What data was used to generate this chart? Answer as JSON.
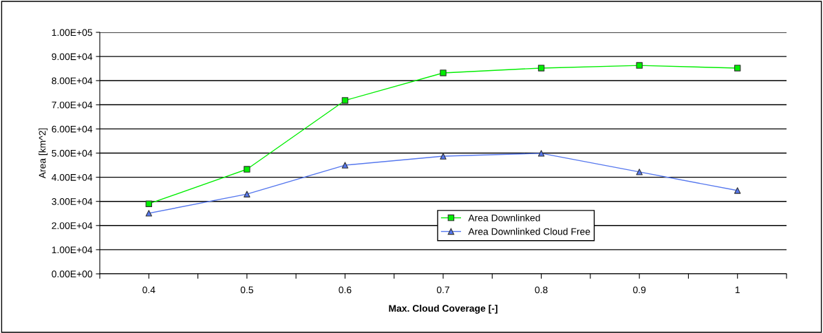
{
  "chart_data": {
    "type": "line",
    "xlabel": "Max. Cloud Coverage [-]",
    "ylabel": "Area [km^2]",
    "x": [
      0.4,
      0.5,
      0.6,
      0.7,
      0.8,
      0.9,
      1.0
    ],
    "series": [
      {
        "name": "Area Downlinked",
        "color": "#00ee00",
        "marker": "square",
        "values": [
          29000,
          43300,
          71800,
          83200,
          85200,
          86300,
          85200
        ]
      },
      {
        "name": "Area Downlinked Cloud Free",
        "color": "#5577ee",
        "marker": "triangle",
        "values": [
          25100,
          33000,
          45000,
          48700,
          49900,
          42200,
          34500
        ]
      }
    ],
    "xlim": [
      0.35,
      1.05
    ],
    "xticks": [
      {
        "value": 0.35,
        "label": null
      },
      {
        "value": 0.4,
        "label": "0.4"
      },
      {
        "value": 0.45,
        "label": null
      },
      {
        "value": 0.5,
        "label": "0.5"
      },
      {
        "value": 0.55,
        "label": null
      },
      {
        "value": 0.6,
        "label": "0.6"
      },
      {
        "value": 0.65,
        "label": null
      },
      {
        "value": 0.7,
        "label": "0.7"
      },
      {
        "value": 0.75,
        "label": null
      },
      {
        "value": 0.8,
        "label": "0.8"
      },
      {
        "value": 0.85,
        "label": null
      },
      {
        "value": 0.9,
        "label": "0.9"
      },
      {
        "value": 0.95,
        "label": null
      },
      {
        "value": 1.0,
        "label": "1"
      },
      {
        "value": 1.05,
        "label": null
      }
    ],
    "ylim": [
      0,
      100000
    ],
    "yticks": [
      {
        "value": 0,
        "label": "0.00E+00"
      },
      {
        "value": 10000,
        "label": "1.00E+04"
      },
      {
        "value": 20000,
        "label": "2.00E+04"
      },
      {
        "value": 30000,
        "label": "3.00E+04"
      },
      {
        "value": 40000,
        "label": "4.00E+04"
      },
      {
        "value": 50000,
        "label": "5.00E+04"
      },
      {
        "value": 60000,
        "label": "6.00E+04"
      },
      {
        "value": 70000,
        "label": "7.00E+04"
      },
      {
        "value": 80000,
        "label": "8.00E+04"
      },
      {
        "value": 90000,
        "label": "9.00E+04"
      },
      {
        "value": 100000,
        "label": "1.00E+05"
      }
    ],
    "grid": "y",
    "legend": "center",
    "line_style": "solid"
  }
}
